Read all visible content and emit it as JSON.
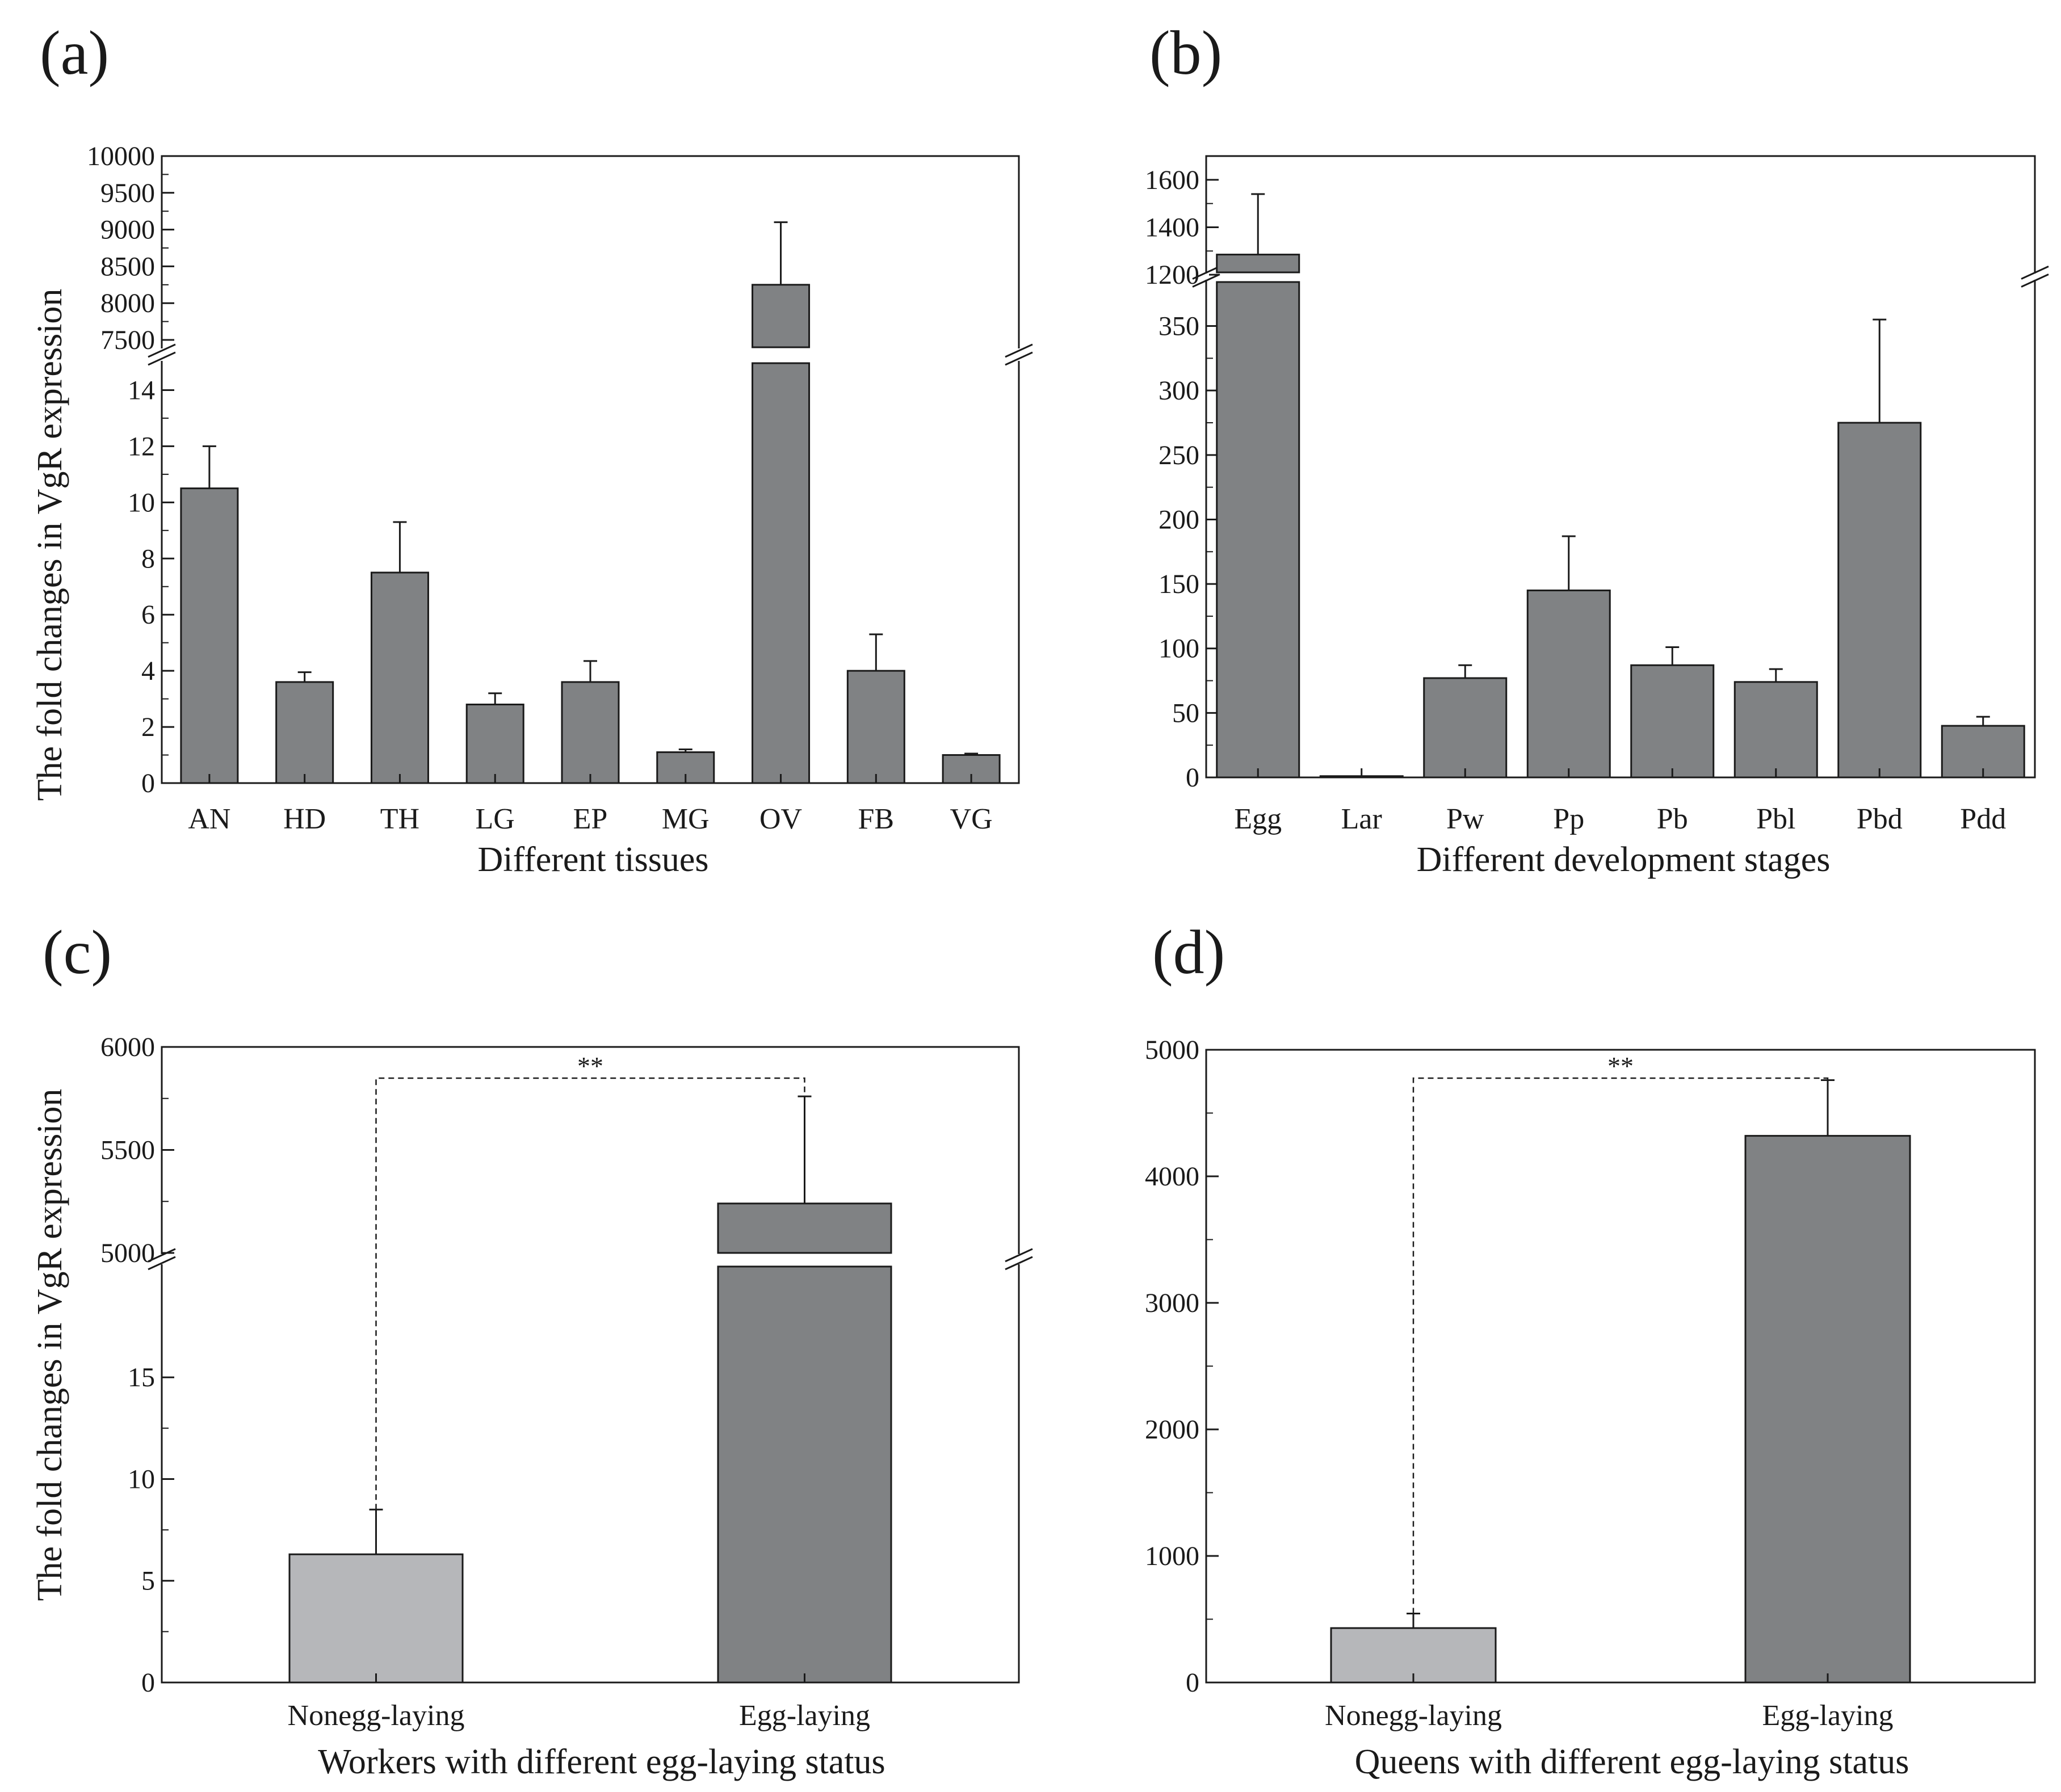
{
  "colors": {
    "bar_dark": "#808284",
    "bar_light": "#b6b7ba",
    "stroke": "#1a1a1a"
  },
  "shared": {
    "ylabel": "The fold changes  in VgR expression"
  },
  "chart_data": [
    {
      "panel": "(a)",
      "type": "bar",
      "xlabel": "Different tissues",
      "categories": [
        "AN",
        "HD",
        "TH",
        "LG",
        "EP",
        "MG",
        "OV",
        "FB",
        "VG"
      ],
      "values": [
        10.5,
        3.6,
        7.5,
        2.8,
        3.6,
        1.1,
        8250,
        4.0,
        1.0
      ],
      "errors": [
        1.5,
        0.35,
        1.8,
        0.4,
        0.75,
        0.1,
        850,
        1.3,
        0.05
      ],
      "broken_axis": {
        "lower_range": [
          0,
          15
        ],
        "lower_ticks": [
          "0",
          "2",
          "4",
          "6",
          "8",
          "10",
          "12",
          "14"
        ],
        "upper_range": [
          7400,
          10000
        ],
        "upper_ticks": [
          "7500",
          "8000",
          "8500",
          "9000",
          "9500",
          "10000"
        ]
      }
    },
    {
      "panel": "(b)",
      "type": "bar",
      "xlabel": "Different development stages",
      "categories": [
        "Egg",
        "Lar",
        "Pw",
        "Pp",
        "Pb",
        "Pbl",
        "Pbd",
        "Pdd"
      ],
      "values": [
        1285,
        1,
        77,
        145,
        87,
        74,
        275,
        40
      ],
      "errors": [
        255,
        0,
        10,
        42,
        14,
        10,
        80,
        7
      ],
      "broken_axis": {
        "lower_range": [
          0,
          385
        ],
        "lower_ticks": [
          "0",
          "50",
          "100",
          "150",
          "200",
          "250",
          "300",
          "350"
        ],
        "upper_range": [
          1210,
          1700
        ],
        "upper_ticks": [
          "1200",
          "1400",
          "1600"
        ]
      }
    },
    {
      "panel": "(c)",
      "type": "bar",
      "xlabel": "Workers with different egg-laying status",
      "categories": [
        "Nonegg-laying",
        "Egg-laying"
      ],
      "values": [
        6.3,
        5240
      ],
      "errors": [
        2.2,
        520
      ],
      "significance": "**",
      "broken_axis": {
        "lower_range": [
          0,
          20.5
        ],
        "lower_ticks": [
          "0",
          "5",
          "10",
          "15"
        ],
        "upper_range": [
          5000,
          6000
        ],
        "upper_ticks": [
          "5000",
          "5500",
          "6000"
        ]
      }
    },
    {
      "panel": "(d)",
      "type": "bar",
      "xlabel": "Queens with different egg-laying status",
      "categories": [
        "Nonegg-laying",
        "Egg-laying"
      ],
      "values": [
        430,
        4320
      ],
      "errors": [
        115,
        440
      ],
      "significance": "**",
      "ylim": [
        0,
        5000
      ],
      "yticks": [
        "0",
        "1000",
        "2000",
        "3000",
        "4000",
        "5000"
      ]
    }
  ]
}
